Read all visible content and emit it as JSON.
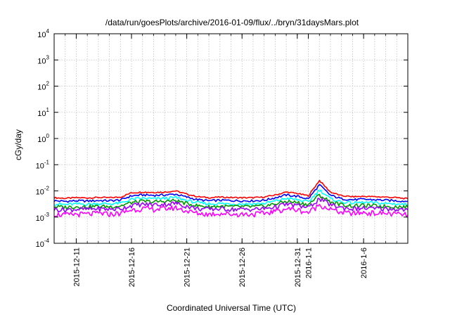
{
  "chart_data": {
    "type": "line",
    "title": "/data/run/goesPlots/archive/2016-01-09/flux/../bryn/31daysMars.plot",
    "xlabel": "Coordinated Universal Time (UTC)",
    "ylabel": "cGy/day",
    "yscale": "log",
    "ylim": [
      0.0001,
      10000
    ],
    "y_ticks": [
      {
        "value": 0.0001,
        "base": "10",
        "exp": "-4"
      },
      {
        "value": 0.001,
        "base": "10",
        "exp": "-3"
      },
      {
        "value": 0.01,
        "base": "10",
        "exp": "-2"
      },
      {
        "value": 0.1,
        "base": "10",
        "exp": "-1"
      },
      {
        "value": 1,
        "base": "10",
        "exp": "0"
      },
      {
        "value": 10,
        "base": "10",
        "exp": "1"
      },
      {
        "value": 100,
        "base": "10",
        "exp": "2"
      },
      {
        "value": 1000,
        "base": "10",
        "exp": "3"
      },
      {
        "value": 10000,
        "base": "10",
        "exp": "4"
      }
    ],
    "xlim": [
      "2015-12-09",
      "2016-01-10"
    ],
    "x_ticks": [
      {
        "date": "2015-12-11",
        "label": "2015-12-11"
      },
      {
        "date": "2015-12-16",
        "label": "2015-12-16"
      },
      {
        "date": "2015-12-21",
        "label": "2015-12-21"
      },
      {
        "date": "2015-12-26",
        "label": "2015-12-26"
      },
      {
        "date": "2015-12-31",
        "label": "2015-12-31"
      },
      {
        "date": "2016-01-01",
        "label": "2016-1-1"
      },
      {
        "date": "2016-01-06",
        "label": "2016-1-6"
      }
    ],
    "grid": true,
    "x": [
      "2015-12-09",
      "2015-12-10",
      "2015-12-11",
      "2015-12-12",
      "2015-12-13",
      "2015-12-14",
      "2015-12-15",
      "2015-12-16",
      "2015-12-17",
      "2015-12-18",
      "2015-12-19",
      "2015-12-20",
      "2015-12-21",
      "2015-12-22",
      "2015-12-23",
      "2015-12-24",
      "2015-12-25",
      "2015-12-26",
      "2015-12-27",
      "2015-12-28",
      "2015-12-29",
      "2015-12-30",
      "2015-12-31",
      "2016-01-01",
      "2016-01-02",
      "2016-01-03",
      "2016-01-04",
      "2016-01-05",
      "2016-01-06",
      "2016-01-07",
      "2016-01-08",
      "2016-01-09",
      "2016-01-10"
    ],
    "series": [
      {
        "color": "#ff0000",
        "values": [
          0.0055,
          0.0052,
          0.0055,
          0.0054,
          0.0056,
          0.0055,
          0.0058,
          0.0085,
          0.009,
          0.0088,
          0.009,
          0.01,
          0.0075,
          0.006,
          0.0055,
          0.0058,
          0.0056,
          0.0055,
          0.0055,
          0.0058,
          0.007,
          0.009,
          0.008,
          0.0065,
          0.025,
          0.009,
          0.0065,
          0.006,
          0.0062,
          0.006,
          0.0058,
          0.0055,
          0.005
        ]
      },
      {
        "color": "#0000ff",
        "values": [
          0.0042,
          0.004,
          0.0042,
          0.0041,
          0.0043,
          0.0042,
          0.0045,
          0.0065,
          0.007,
          0.0068,
          0.007,
          0.0075,
          0.0058,
          0.0046,
          0.0042,
          0.0044,
          0.0043,
          0.0042,
          0.0042,
          0.0044,
          0.0055,
          0.007,
          0.0062,
          0.005,
          0.017,
          0.0068,
          0.005,
          0.0046,
          0.0048,
          0.0046,
          0.0044,
          0.0042,
          0.004
        ]
      },
      {
        "color": "#00ffff",
        "values": [
          0.0032,
          0.003,
          0.0032,
          0.0031,
          0.0033,
          0.0032,
          0.0034,
          0.0048,
          0.0052,
          0.005,
          0.0052,
          0.0056,
          0.0043,
          0.0035,
          0.0032,
          0.0033,
          0.0032,
          0.0032,
          0.0032,
          0.0033,
          0.0041,
          0.0052,
          0.0046,
          0.0038,
          0.011,
          0.005,
          0.0038,
          0.0035,
          0.0036,
          0.0035,
          0.0033,
          0.0032,
          0.003
        ]
      },
      {
        "color": "#009900",
        "values": [
          0.0025,
          0.0024,
          0.0025,
          0.0025,
          0.0026,
          0.0025,
          0.0027,
          0.0036,
          0.004,
          0.0038,
          0.004,
          0.0043,
          0.0033,
          0.0027,
          0.0025,
          0.0026,
          0.0025,
          0.0025,
          0.0025,
          0.0026,
          0.0032,
          0.004,
          0.0036,
          0.003,
          0.007,
          0.0038,
          0.003,
          0.0027,
          0.0028,
          0.0027,
          0.0026,
          0.0025,
          0.0024
        ]
      },
      {
        "color": "#9900ff",
        "values": [
          0.002,
          0.0019,
          0.002,
          0.002,
          0.0021,
          0.002,
          0.0021,
          0.0028,
          0.0031,
          0.003,
          0.0031,
          0.0034,
          0.0026,
          0.0021,
          0.002,
          0.0021,
          0.002,
          0.002,
          0.002,
          0.0021,
          0.0025,
          0.0031,
          0.0028,
          0.0023,
          0.005,
          0.003,
          0.0023,
          0.0021,
          0.0022,
          0.0021,
          0.0021,
          0.002,
          0.0019
        ]
      },
      {
        "color": "#ff00ff",
        "values": [
          0.0013,
          0.0012,
          0.0013,
          0.0013,
          0.0014,
          0.0013,
          0.0014,
          0.0019,
          0.0021,
          0.002,
          0.0021,
          0.0023,
          0.0017,
          0.0014,
          0.0013,
          0.0014,
          0.0013,
          0.0013,
          0.0013,
          0.0014,
          0.0017,
          0.0021,
          0.0019,
          0.0015,
          0.003,
          0.002,
          0.0015,
          0.0014,
          0.0015,
          0.0014,
          0.0014,
          0.0013,
          0.0012
        ]
      }
    ]
  }
}
